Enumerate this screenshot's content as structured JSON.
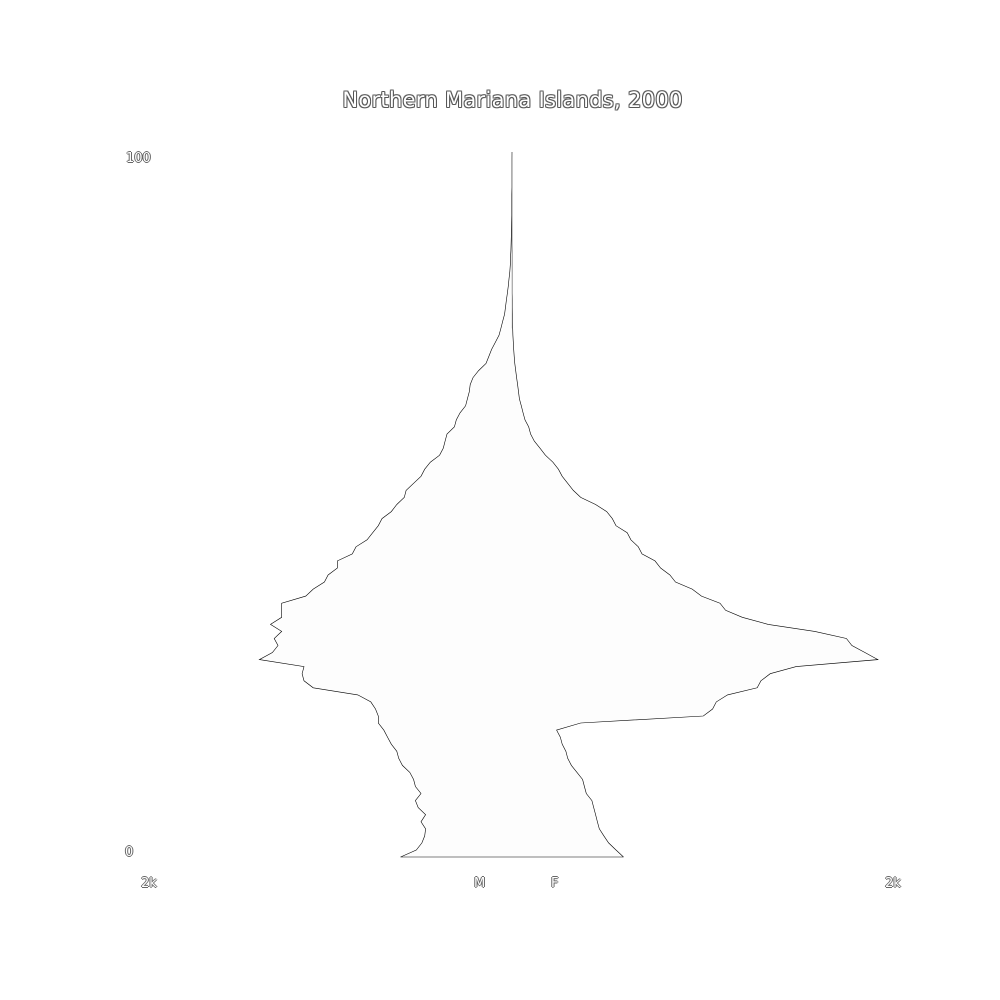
{
  "chart_data": {
    "type": "area",
    "title": "Northern Mariana Islands, 2000",
    "x_tick_left": "2k",
    "x_tick_right": "2k",
    "y_tick_top": "100",
    "y_tick_bottom": "0",
    "male_label": "M",
    "female_label": "F",
    "ylim": [
      0,
      100
    ],
    "xlim": [
      -2000,
      2000
    ],
    "ages": [
      0,
      1,
      2,
      3,
      4,
      5,
      6,
      7,
      8,
      9,
      10,
      11,
      12,
      13,
      14,
      15,
      16,
      17,
      18,
      19,
      20,
      21,
      22,
      23,
      24,
      25,
      26,
      27,
      28,
      29,
      30,
      31,
      32,
      33,
      34,
      35,
      36,
      37,
      38,
      39,
      40,
      41,
      42,
      43,
      44,
      45,
      46,
      47,
      48,
      49,
      50,
      51,
      52,
      53,
      54,
      55,
      56,
      57,
      58,
      59,
      60,
      61,
      62,
      63,
      64,
      65,
      66,
      67,
      68,
      69,
      70,
      71,
      72,
      73,
      74,
      75,
      76,
      77,
      78,
      79,
      80,
      81,
      82,
      83,
      84,
      85,
      86,
      87,
      88,
      89,
      90,
      91,
      92,
      93,
      94,
      95,
      96,
      97,
      98,
      99,
      100
    ],
    "male": [
      600,
      515,
      485,
      470,
      465,
      490,
      465,
      505,
      520,
      490,
      520,
      530,
      550,
      590,
      610,
      620,
      650,
      670,
      690,
      720,
      720,
      735,
      760,
      830,
      1070,
      1120,
      1130,
      1120,
      1360,
      1290,
      1260,
      1280,
      1240,
      1300,
      1240,
      1240,
      1240,
      1110,
      1070,
      1010,
      990,
      940,
      940,
      860,
      840,
      780,
      750,
      720,
      700,
      650,
      620,
      580,
      570,
      530,
      490,
      470,
      440,
      390,
      370,
      360,
      350,
      310,
      300,
      280,
      250,
      240,
      230,
      225,
      210,
      180,
      140,
      125,
      110,
      90,
      70,
      60,
      50,
      40,
      35,
      30,
      25,
      20,
      16,
      12,
      9,
      8,
      6,
      5,
      4,
      4,
      3,
      2,
      2,
      2,
      2,
      1,
      1,
      1,
      1,
      1,
      0
    ],
    "female": [
      600,
      560,
      520,
      495,
      470,
      460,
      450,
      440,
      430,
      400,
      390,
      380,
      350,
      320,
      300,
      290,
      270,
      260,
      240,
      370,
      1030,
      1080,
      1100,
      1160,
      1320,
      1340,
      1390,
      1530,
      1970,
      1900,
      1830,
      1800,
      1630,
      1380,
      1240,
      1150,
      1120,
      1020,
      970,
      880,
      850,
      800,
      770,
      700,
      680,
      640,
      620,
      560,
      540,
      510,
      450,
      370,
      330,
      300,
      270,
      250,
      220,
      180,
      150,
      120,
      100,
      90,
      70,
      60,
      50,
      40,
      35,
      30,
      25,
      20,
      15,
      12,
      9,
      7,
      5,
      4,
      3,
      3,
      2,
      2,
      1,
      1,
      1,
      1,
      1,
      1,
      1,
      0,
      0,
      0,
      0,
      0,
      0,
      0,
      0,
      0,
      0,
      0,
      0,
      0,
      0
    ],
    "fill_color": "#fdfdfd",
    "stroke_color": "#000000"
  }
}
